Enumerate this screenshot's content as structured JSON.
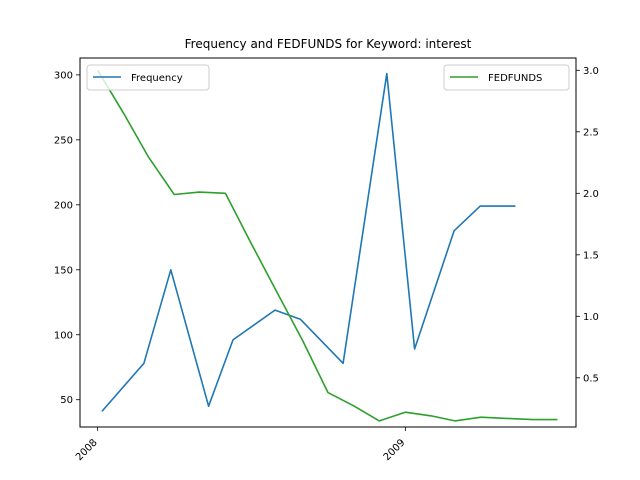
{
  "chart_data": {
    "type": "line",
    "title": "Frequency and FEDFUNDS for Keyword: interest",
    "x_tick_labels": [
      "2008",
      "2009"
    ],
    "x_range": [
      "2007-12-11",
      "2009-07-23"
    ],
    "y_left": {
      "range": [
        29,
        313
      ],
      "ticks": [
        50,
        100,
        150,
        200,
        250,
        300
      ]
    },
    "y_right": {
      "range": [
        0.1,
        3.1
      ],
      "ticks": [
        0.5,
        1.0,
        1.5,
        2.0,
        2.5,
        3.0
      ],
      "tick_labels": [
        "0.5",
        "1.0",
        "1.5",
        "2.0",
        "2.5",
        "3.0"
      ]
    },
    "series": [
      {
        "name": "Frequency",
        "axis": "left",
        "color": "#1f77b4",
        "dates": [
          "2008-01-06",
          "2008-02-25",
          "2008-03-28",
          "2008-05-12",
          "2008-06-10",
          "2008-07-30",
          "2008-08-29",
          "2008-10-19",
          "2008-12-10",
          "2009-01-12",
          "2009-02-28",
          "2009-03-31",
          "2009-05-12"
        ],
        "values": [
          41,
          78,
          150,
          45,
          96,
          119,
          112,
          78,
          301,
          89,
          180,
          199,
          199
        ]
      },
      {
        "name": "FEDFUNDS",
        "axis": "right",
        "color": "#2ca02c",
        "dates": [
          "2008-01-01",
          "2008-02-01",
          "2008-03-01",
          "2008-04-01",
          "2008-05-01",
          "2008-06-01",
          "2008-07-01",
          "2008-08-01",
          "2008-09-01",
          "2008-10-01",
          "2008-11-01",
          "2008-12-01",
          "2009-01-01",
          "2009-02-01",
          "2009-03-01",
          "2009-04-01",
          "2009-05-01",
          "2009-06-01",
          "2009-07-01"
        ],
        "values": [
          3.0,
          2.65,
          2.3,
          1.99,
          2.01,
          2.0,
          1.6,
          1.2,
          0.8,
          0.38,
          0.27,
          0.15,
          0.22,
          0.19,
          0.15,
          0.18,
          0.17,
          0.16,
          0.16
        ]
      }
    ],
    "legend": {
      "left": "upper-left",
      "right": "upper-right"
    },
    "grid": false
  }
}
